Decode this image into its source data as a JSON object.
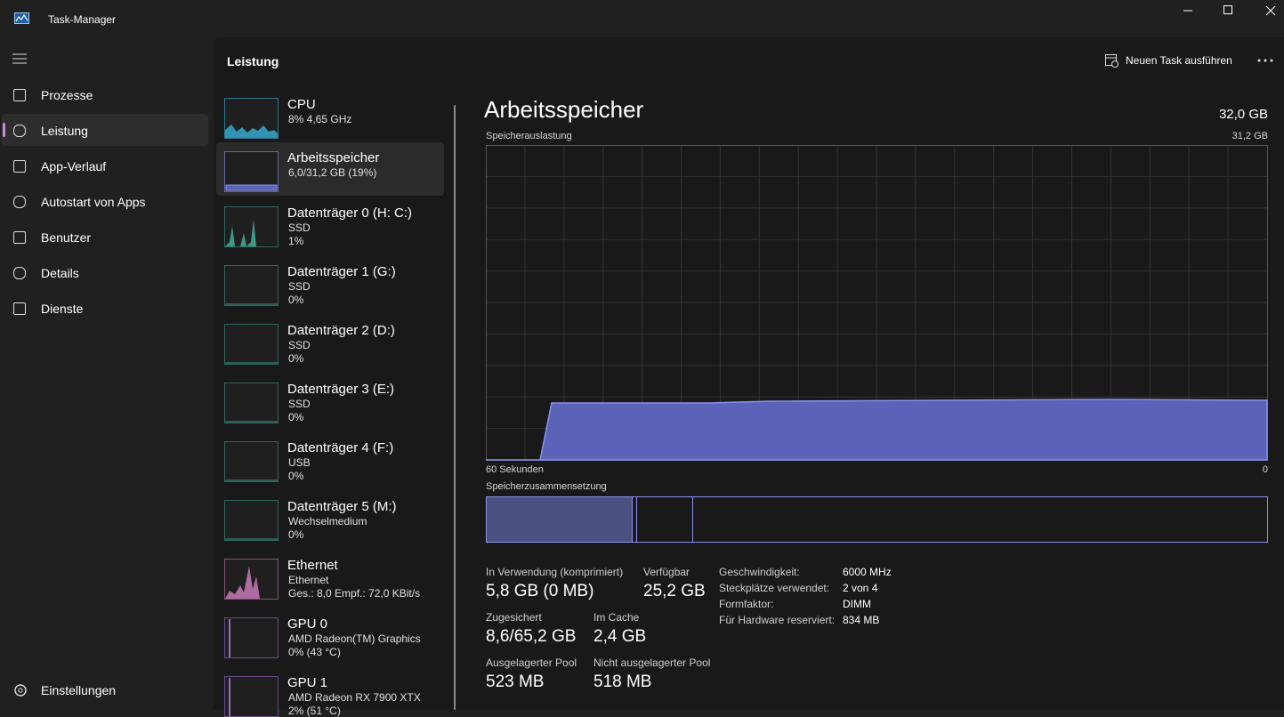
{
  "window": {
    "title": "Task-Manager"
  },
  "nav": {
    "items": [
      "Prozesse",
      "Leistung",
      "App-Verlauf",
      "Autostart von Apps",
      "Benutzer",
      "Details",
      "Dienste"
    ],
    "settings": "Einstellungen"
  },
  "header": {
    "title": "Leistung",
    "action": "Neuen Task ausführen"
  },
  "devices": [
    {
      "name": "CPU",
      "lines": [
        "8% 4,65 GHz"
      ]
    },
    {
      "name": "Arbeitsspeicher",
      "lines": [
        "6,0/31,2 GB (19%)"
      ]
    },
    {
      "name": "Datenträger 0 (H: C:)",
      "lines": [
        "SSD",
        "1%"
      ]
    },
    {
      "name": "Datenträger 1 (G:)",
      "lines": [
        "SSD",
        "0%"
      ]
    },
    {
      "name": "Datenträger 2 (D:)",
      "lines": [
        "SSD",
        "0%"
      ]
    },
    {
      "name": "Datenträger 3 (E:)",
      "lines": [
        "SSD",
        "0%"
      ]
    },
    {
      "name": "Datenträger 4 (F:)",
      "lines": [
        "USB",
        "0%"
      ]
    },
    {
      "name": "Datenträger 5 (M:)",
      "lines": [
        "Wechselmedium",
        "0%"
      ]
    },
    {
      "name": "Ethernet",
      "lines": [
        "Ethernet",
        "Ges.: 8,0 Empf.: 72,0 KBit/s"
      ]
    },
    {
      "name": "GPU 0",
      "lines": [
        "AMD Radeon(TM) Graphics",
        "0% (43 °C)"
      ]
    },
    {
      "name": "GPU 1",
      "lines": [
        "AMD Radeon RX 7900 XTX",
        "2% (51 °C)"
      ]
    }
  ],
  "detail": {
    "title": "Arbeitsspeicher",
    "total": "32,0 GB",
    "graph_label": "Speicherauslastung",
    "graph_max": "31,2 GB",
    "graph_left": "60 Sekunden",
    "graph_right": "0",
    "composition_label": "Speicherzusammensetzung",
    "stats": [
      {
        "label": "In Verwendung (komprimiert)",
        "value": "5,8 GB (0 MB)"
      },
      {
        "label": "Verfügbar",
        "value": "25,2 GB"
      },
      {
        "label": "Zugesichert",
        "value": "8,6/65,2 GB"
      },
      {
        "label": "Im Cache",
        "value": "2,4 GB"
      },
      {
        "label": "Ausgelagerter Pool",
        "value": "523 MB"
      },
      {
        "label": "Nicht ausgelagerter Pool",
        "value": "518 MB"
      }
    ],
    "properties": [
      {
        "label": "Geschwindigkeit:",
        "value": "6000 MHz"
      },
      {
        "label": "Steckplätze verwendet:",
        "value": "2 von 4"
      },
      {
        "label": "Formfaktor:",
        "value": "DIMM"
      },
      {
        "label": "Für Hardware reserviert:",
        "value": "834 MB"
      }
    ]
  }
}
